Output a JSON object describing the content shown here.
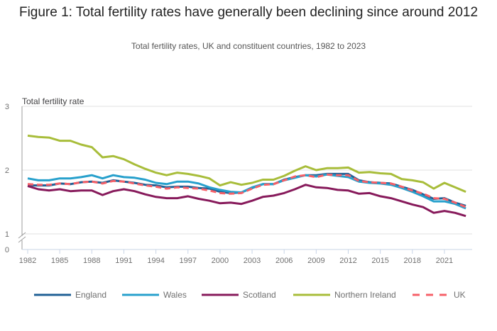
{
  "header": {
    "title": "Figure 1: Total fertility rates have generally been declining since around 2012",
    "subtitle": "Total fertility rates, UK and constituent countries, 1982 to 2023"
  },
  "chart_data": {
    "type": "line",
    "title": "Figure 1: Total fertility rates have generally been declining since around 2012",
    "subtitle": "Total fertility rates, UK and constituent countries, 1982 to 2023",
    "xlabel": "",
    "ylabel": "Total fertility rate",
    "ylim": [
      0,
      3
    ],
    "y_axis_break": [
      0,
      1
    ],
    "yticks": [
      "0",
      "1",
      "2",
      "3"
    ],
    "xticks": [
      "1982",
      "1985",
      "1988",
      "1991",
      "1994",
      "1997",
      "2000",
      "2003",
      "2006",
      "2009",
      "2012",
      "2015",
      "2018",
      "2021"
    ],
    "grid": true,
    "legend_position": "bottom",
    "x": [
      1982,
      1983,
      1984,
      1985,
      1986,
      1987,
      1988,
      1989,
      1990,
      1991,
      1992,
      1993,
      1994,
      1995,
      1996,
      1997,
      1998,
      1999,
      2000,
      2001,
      2002,
      2003,
      2004,
      2005,
      2006,
      2007,
      2008,
      2009,
      2010,
      2011,
      2012,
      2013,
      2014,
      2015,
      2016,
      2017,
      2018,
      2019,
      2020,
      2021,
      2022,
      2023
    ],
    "series": [
      {
        "name": "England",
        "color": "#206095",
        "dashed": false,
        "values": [
          1.76,
          1.76,
          1.76,
          1.79,
          1.78,
          1.81,
          1.82,
          1.8,
          1.84,
          1.82,
          1.8,
          1.77,
          1.76,
          1.73,
          1.74,
          1.74,
          1.72,
          1.71,
          1.66,
          1.64,
          1.65,
          1.72,
          1.78,
          1.78,
          1.85,
          1.89,
          1.92,
          1.92,
          1.94,
          1.94,
          1.94,
          1.84,
          1.81,
          1.8,
          1.79,
          1.74,
          1.69,
          1.62,
          1.55,
          1.56,
          1.49,
          1.44
        ]
      },
      {
        "name": "Wales",
        "color": "#27a0cc",
        "dashed": false,
        "values": [
          1.87,
          1.84,
          1.84,
          1.87,
          1.87,
          1.89,
          1.92,
          1.87,
          1.92,
          1.89,
          1.88,
          1.85,
          1.8,
          1.78,
          1.82,
          1.82,
          1.79,
          1.73,
          1.69,
          1.66,
          1.65,
          1.73,
          1.78,
          1.78,
          1.84,
          1.88,
          1.92,
          1.9,
          1.93,
          1.91,
          1.89,
          1.82,
          1.8,
          1.79,
          1.77,
          1.72,
          1.66,
          1.59,
          1.51,
          1.51,
          1.47,
          1.4
        ]
      },
      {
        "name": "Scotland",
        "color": "#871a5b",
        "dashed": false,
        "values": [
          1.75,
          1.7,
          1.68,
          1.7,
          1.67,
          1.68,
          1.68,
          1.61,
          1.67,
          1.7,
          1.67,
          1.62,
          1.58,
          1.56,
          1.56,
          1.59,
          1.55,
          1.52,
          1.48,
          1.49,
          1.47,
          1.52,
          1.58,
          1.6,
          1.64,
          1.7,
          1.77,
          1.73,
          1.72,
          1.69,
          1.68,
          1.63,
          1.64,
          1.59,
          1.56,
          1.51,
          1.46,
          1.42,
          1.33,
          1.36,
          1.33,
          1.28
        ]
      },
      {
        "name": "Northern Ireland",
        "color": "#a8bd3a",
        "dashed": false,
        "values": [
          2.54,
          2.52,
          2.51,
          2.46,
          2.46,
          2.4,
          2.36,
          2.2,
          2.22,
          2.17,
          2.09,
          2.02,
          1.96,
          1.92,
          1.96,
          1.94,
          1.91,
          1.87,
          1.76,
          1.81,
          1.77,
          1.8,
          1.85,
          1.85,
          1.91,
          1.99,
          2.06,
          2.0,
          2.03,
          2.03,
          2.04,
          1.96,
          1.97,
          1.95,
          1.94,
          1.86,
          1.84,
          1.81,
          1.71,
          1.8,
          1.73,
          1.66
        ]
      },
      {
        "name": "UK",
        "color": "#f66068",
        "dashed": true,
        "values": [
          1.78,
          1.77,
          1.77,
          1.79,
          1.78,
          1.81,
          1.82,
          1.79,
          1.83,
          1.82,
          1.79,
          1.76,
          1.74,
          1.71,
          1.73,
          1.72,
          1.71,
          1.68,
          1.64,
          1.63,
          1.64,
          1.71,
          1.77,
          1.78,
          1.84,
          1.9,
          1.92,
          1.89,
          1.93,
          1.92,
          1.92,
          1.83,
          1.81,
          1.8,
          1.79,
          1.74,
          1.68,
          1.63,
          1.56,
          1.55,
          1.49,
          1.42
        ]
      }
    ]
  }
}
